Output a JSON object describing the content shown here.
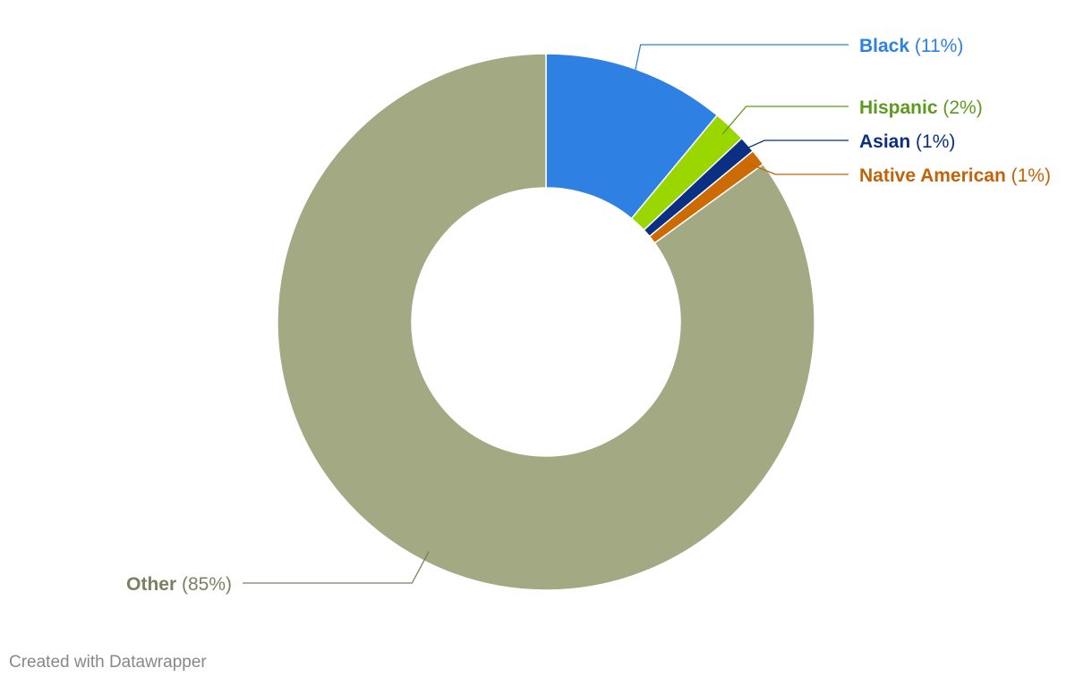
{
  "chart_data": {
    "type": "pie",
    "variant": "donut",
    "slices": [
      {
        "name": "Black",
        "value": 11,
        "label": "(11%)",
        "color": "#2e81e3",
        "text_color": "#2e81e3"
      },
      {
        "name": "Hispanic",
        "value": 2,
        "label": "(2%)",
        "color": "#9ad600",
        "text_color": "#5c9a1e"
      },
      {
        "name": "Asian",
        "value": 1,
        "label": "(1%)",
        "color": "#0b2f82",
        "text_color": "#0b2f82"
      },
      {
        "name": "Native American",
        "value": 1,
        "label": "(1%)",
        "color": "#cc6a04",
        "text_color": "#c26307"
      },
      {
        "name": "Other",
        "value": 85,
        "label": "(85%)",
        "color": "#a3a983",
        "text_color": "#7b8160"
      }
    ]
  },
  "footer": {
    "credit": "Created with Datawrapper"
  }
}
